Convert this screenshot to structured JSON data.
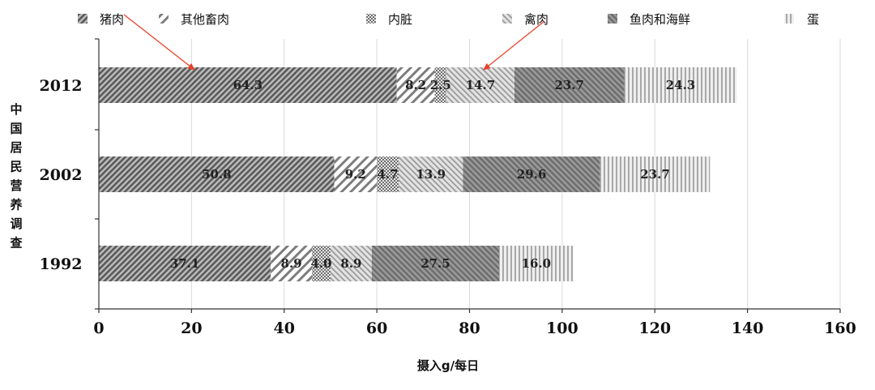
{
  "chart_data": {
    "type": "bar",
    "orientation": "horizontal",
    "stacked": true,
    "categories": [
      "2012",
      "2002",
      "1992"
    ],
    "series": [
      {
        "name": "猪肉",
        "values": [
          64.3,
          50.8,
          37.1
        ],
        "color": "#7a7a7a"
      },
      {
        "name": "其他畜肉",
        "values": [
          8.2,
          9.2,
          8.9
        ],
        "color": "#9a9a9a"
      },
      {
        "name": "内脏",
        "values": [
          2.5,
          4.7,
          4.0
        ],
        "color": "#8a8a8a"
      },
      {
        "name": "禽肉",
        "values": [
          14.7,
          13.9,
          8.9
        ],
        "color": "#b0b0b0"
      },
      {
        "name": "鱼肉和海鲜",
        "values": [
          23.7,
          29.6,
          27.5
        ],
        "color": "#8c8c8c"
      },
      {
        "name": "蛋",
        "values": [
          24.3,
          23.7,
          16.0
        ],
        "color": "#c4c4c4"
      }
    ],
    "xlabel": "摄入g/每日",
    "ylabel": "中国居民营养调查",
    "xlim": [
      0,
      160
    ],
    "xticks": [
      0,
      20,
      40,
      60,
      80,
      100,
      120,
      140,
      160
    ],
    "grid": true,
    "legend_position": "top",
    "annotations": [
      "arrow to 猪肉 segment of 2012",
      "arrow to 禽肉 segment of 2012"
    ]
  }
}
